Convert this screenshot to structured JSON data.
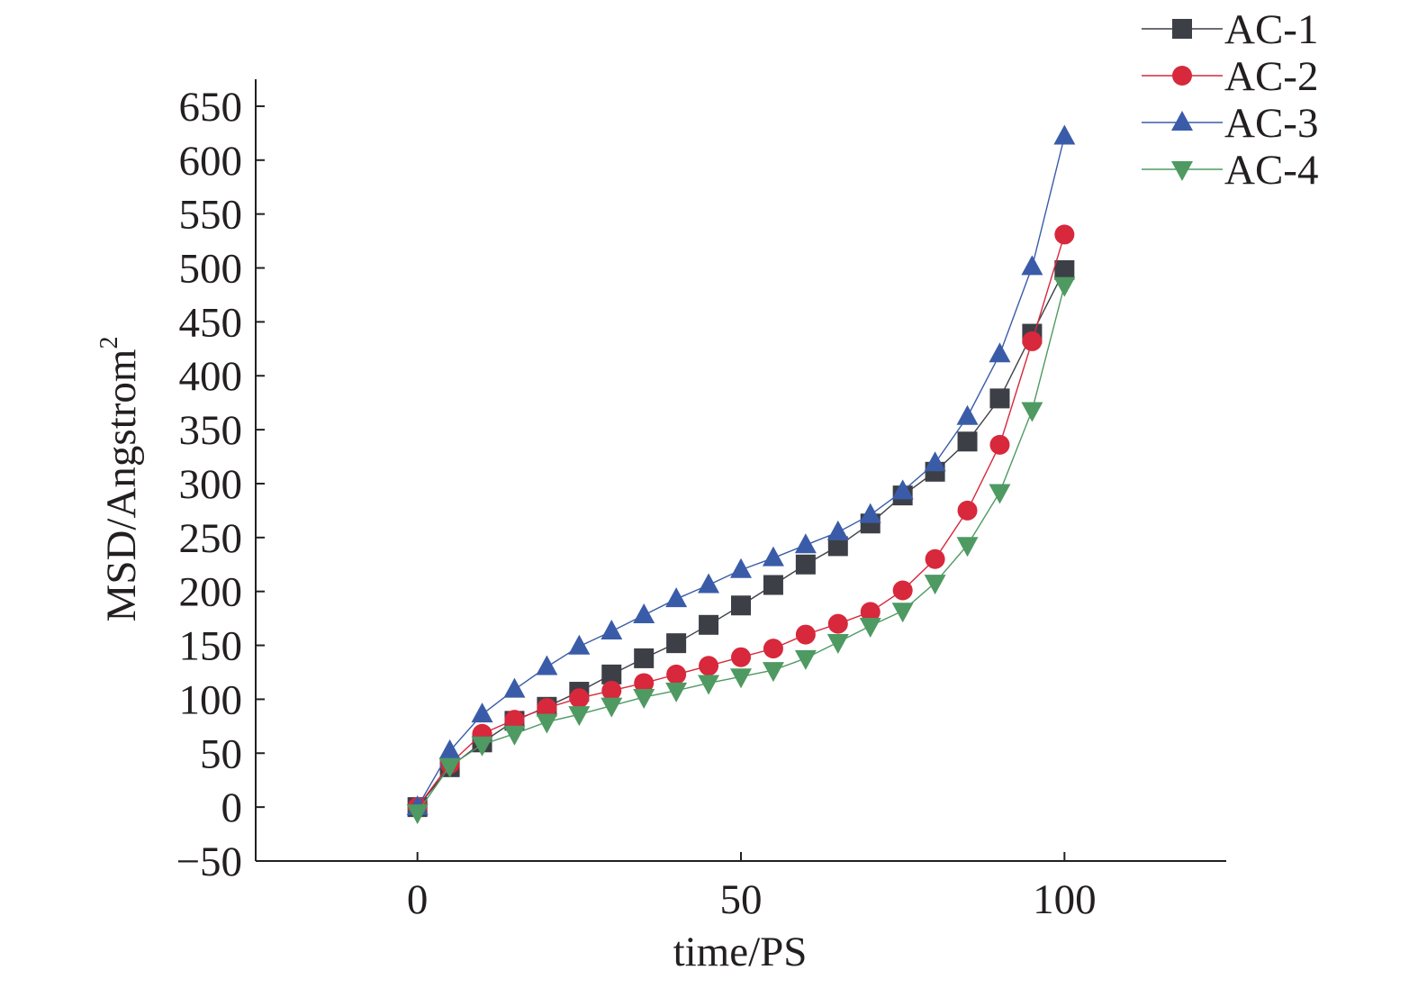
{
  "chart_data": {
    "type": "line",
    "title": "",
    "xlabel": "time/PS",
    "ylabel": "MSD/Angstrom",
    "ylabel_superscript": "2",
    "xlim": [
      -25,
      125
    ],
    "ylim": [
      -50,
      675
    ],
    "xticks": [
      0,
      50,
      100
    ],
    "xtick_labels": [
      "0",
      "50",
      "100"
    ],
    "yticks": [
      -50,
      0,
      50,
      100,
      150,
      200,
      250,
      300,
      350,
      400,
      450,
      500,
      550,
      600,
      650
    ],
    "ytick_labels": [
      "−50",
      "0",
      "50",
      "100",
      "150",
      "200",
      "250",
      "300",
      "350",
      "400",
      "450",
      "500",
      "550",
      "600",
      "650"
    ],
    "grid": false,
    "legend_position": "top-right",
    "x": [
      0,
      5,
      10,
      15,
      20,
      25,
      30,
      35,
      40,
      45,
      50,
      55,
      60,
      65,
      70,
      75,
      80,
      85,
      90,
      95,
      100
    ],
    "series": [
      {
        "name": "AC-1",
        "color": "#3d3f46",
        "marker": "square",
        "values": [
          0,
          37,
          60,
          80,
          93,
          107,
          123,
          138,
          152,
          169,
          187,
          206,
          225,
          242,
          263,
          289,
          311,
          339,
          379,
          439,
          498
        ]
      },
      {
        "name": "AC-2",
        "color": "#d7283c",
        "marker": "circle",
        "values": [
          0,
          40,
          68,
          81,
          92,
          101,
          108,
          115,
          123,
          131,
          139,
          147,
          160,
          170,
          181,
          201,
          230,
          275,
          336,
          432,
          531
        ]
      },
      {
        "name": "AC-3",
        "color": "#3a5ca8",
        "marker": "triangle-up",
        "values": [
          0,
          52,
          86,
          109,
          130,
          149,
          163,
          178,
          193,
          206,
          220,
          231,
          243,
          255,
          271,
          293,
          319,
          362,
          420,
          501,
          622
        ]
      },
      {
        "name": "AC-4",
        "color": "#4e9a62",
        "marker": "triangle-down",
        "values": [
          -5,
          38,
          58,
          68,
          79,
          86,
          94,
          102,
          108,
          115,
          121,
          127,
          138,
          153,
          168,
          182,
          208,
          243,
          292,
          368,
          484
        ]
      }
    ]
  }
}
